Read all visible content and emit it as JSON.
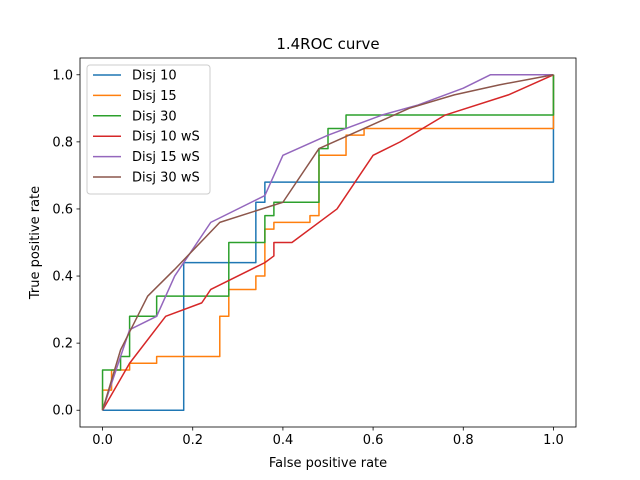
{
  "chart_data": {
    "type": "line",
    "title": "1.4ROC curve",
    "xlabel": "False positive rate",
    "ylabel": "True positive rate",
    "xlim": [
      -0.05,
      1.05
    ],
    "ylim": [
      -0.05,
      1.05
    ],
    "xticks": [
      0.0,
      0.2,
      0.4,
      0.6,
      0.8,
      1.0
    ],
    "yticks": [
      0.0,
      0.2,
      0.4,
      0.6,
      0.8,
      1.0
    ],
    "xtick_labels": [
      "0.0",
      "0.2",
      "0.4",
      "0.6",
      "0.8",
      "1.0"
    ],
    "ytick_labels": [
      "0.0",
      "0.2",
      "0.4",
      "0.6",
      "0.8",
      "1.0"
    ],
    "grid": false,
    "legend_position": "top-left",
    "series": [
      {
        "name": "Disj 10",
        "color": "#1f77b4",
        "x": [
          0,
          0,
          0.18,
          0.18,
          0.34,
          0.34,
          0.36,
          0.36,
          1.0,
          1.0
        ],
        "y": [
          0,
          0,
          0,
          0.44,
          0.44,
          0.62,
          0.62,
          0.68,
          0.68,
          1.0
        ]
      },
      {
        "name": "Disj 15",
        "color": "#ff7f0e",
        "x": [
          0,
          0,
          0.02,
          0.02,
          0.06,
          0.06,
          0.12,
          0.12,
          0.26,
          0.26,
          0.28,
          0.28,
          0.34,
          0.34,
          0.36,
          0.36,
          0.38,
          0.38,
          0.4,
          0.4,
          0.46,
          0.46,
          0.48,
          0.48,
          0.54,
          0.54,
          0.58,
          0.58,
          1.0,
          1.0
        ],
        "y": [
          0,
          0.06,
          0.06,
          0.12,
          0.12,
          0.14,
          0.14,
          0.16,
          0.16,
          0.28,
          0.28,
          0.36,
          0.36,
          0.4,
          0.4,
          0.54,
          0.54,
          0.56,
          0.56,
          0.56,
          0.56,
          0.58,
          0.58,
          0.76,
          0.76,
          0.82,
          0.82,
          0.84,
          0.84,
          1.0
        ]
      },
      {
        "name": "Disj 30",
        "color": "#2ca02c",
        "x": [
          0,
          0,
          0.04,
          0.04,
          0.06,
          0.06,
          0.12,
          0.12,
          0.28,
          0.28,
          0.36,
          0.36,
          0.38,
          0.38,
          0.48,
          0.48,
          0.5,
          0.5,
          0.54,
          0.54,
          1.0,
          1.0
        ],
        "y": [
          0,
          0.12,
          0.12,
          0.16,
          0.16,
          0.28,
          0.28,
          0.34,
          0.34,
          0.5,
          0.5,
          0.58,
          0.58,
          0.62,
          0.62,
          0.78,
          0.78,
          0.84,
          0.84,
          0.88,
          0.88,
          1.0
        ]
      },
      {
        "name": "Disj 10 wS",
        "color": "#d62728",
        "x": [
          0,
          0.06,
          0.14,
          0.22,
          0.24,
          0.36,
          0.38,
          0.38,
          0.42,
          0.52,
          0.6,
          0.66,
          0.76,
          0.9,
          1.0
        ],
        "y": [
          0,
          0.14,
          0.28,
          0.32,
          0.36,
          0.44,
          0.46,
          0.5,
          0.5,
          0.6,
          0.76,
          0.8,
          0.88,
          0.94,
          1.0
        ]
      },
      {
        "name": "Disj 15 wS",
        "color": "#9467bd",
        "x": [
          0,
          0.04,
          0.06,
          0.12,
          0.16,
          0.24,
          0.36,
          0.4,
          0.5,
          0.62,
          0.7,
          0.8,
          0.86,
          1.0
        ],
        "y": [
          0,
          0.16,
          0.24,
          0.28,
          0.4,
          0.56,
          0.64,
          0.76,
          0.82,
          0.88,
          0.91,
          0.96,
          1.0,
          1.0
        ]
      },
      {
        "name": "Disj 30 wS",
        "color": "#8c564b",
        "x": [
          0,
          0.04,
          0.1,
          0.16,
          0.26,
          0.4,
          0.48,
          0.58,
          0.68,
          0.78,
          0.88,
          1.0
        ],
        "y": [
          0,
          0.18,
          0.34,
          0.42,
          0.56,
          0.62,
          0.78,
          0.84,
          0.9,
          0.94,
          0.97,
          1.0
        ]
      }
    ]
  }
}
